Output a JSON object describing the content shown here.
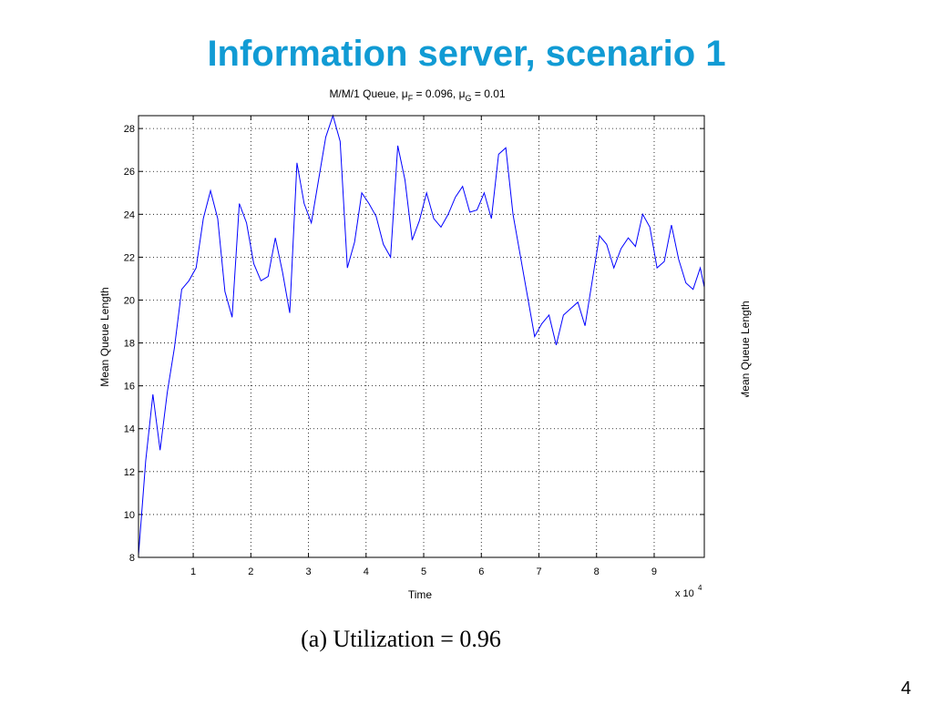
{
  "slide_title": "Information server, scenario 1",
  "caption": "(a) Utilization = 0.96",
  "page_number": "4",
  "side_label": "Mean Queue Length",
  "chart_data": {
    "type": "line",
    "title_parts": [
      "M/M/1 Queue, μ",
      "F",
      " = 0.096, μ",
      "G",
      " = 0.01"
    ],
    "x_label": "Time",
    "y_label": "Mean Queue Length",
    "x_multiplier": "x 10",
    "x_multiplier_exponent": "4",
    "color": "#0000ff",
    "grid": true,
    "xlim": [
      0.05,
      9.87
    ],
    "ylim": [
      8,
      28.6
    ],
    "xticks": [
      1,
      2,
      3,
      4,
      5,
      6,
      7,
      8,
      9
    ],
    "yticks": [
      8,
      10,
      12,
      14,
      16,
      18,
      20,
      22,
      24,
      26,
      28
    ],
    "x": [
      0.05,
      0.175,
      0.3,
      0.425,
      0.55,
      0.675,
      0.8,
      0.925,
      1.05,
      1.175,
      1.3,
      1.425,
      1.55,
      1.675,
      1.8,
      1.925,
      2.05,
      2.175,
      2.3,
      2.425,
      2.55,
      2.675,
      2.8,
      2.925,
      3.05,
      3.175,
      3.3,
      3.425,
      3.55,
      3.675,
      3.8,
      3.925,
      4.05,
      4.175,
      4.3,
      4.425,
      4.55,
      4.675,
      4.8,
      4.925,
      5.05,
      5.175,
      5.3,
      5.425,
      5.55,
      5.675,
      5.8,
      5.925,
      6.05,
      6.175,
      6.3,
      6.425,
      6.55,
      6.675,
      6.8,
      6.925,
      7.05,
      7.175,
      7.3,
      7.425,
      7.55,
      7.675,
      7.8,
      7.925,
      8.05,
      8.175,
      8.3,
      8.425,
      8.55,
      8.675,
      8.8,
      8.925,
      9.05,
      9.175,
      9.3,
      9.425,
      9.55,
      9.675,
      9.8,
      9.87
    ],
    "values": [
      8.1,
      12.5,
      15.6,
      13.0,
      15.7,
      17.8,
      20.5,
      20.9,
      21.5,
      23.8,
      25.1,
      23.8,
      20.4,
      19.2,
      24.5,
      23.6,
      21.7,
      20.9,
      21.1,
      22.9,
      21.3,
      19.4,
      26.4,
      24.5,
      23.6,
      25.6,
      27.6,
      28.6,
      27.4,
      21.5,
      22.7,
      25.0,
      24.5,
      23.9,
      22.6,
      22.0,
      27.2,
      25.6,
      22.8,
      23.7,
      25.0,
      23.8,
      23.4,
      24.0,
      24.8,
      25.3,
      24.1,
      24.2,
      25.0,
      23.8,
      26.8,
      27.1,
      24.0,
      22.1,
      20.2,
      18.3,
      18.9,
      19.3,
      17.9,
      19.3,
      19.6,
      19.9,
      18.8,
      20.9,
      23.0,
      22.6,
      21.5,
      22.4,
      22.9,
      22.5,
      24.0,
      23.4,
      21.5,
      21.8,
      23.5,
      21.9,
      20.8,
      20.5,
      21.5,
      20.6
    ]
  }
}
